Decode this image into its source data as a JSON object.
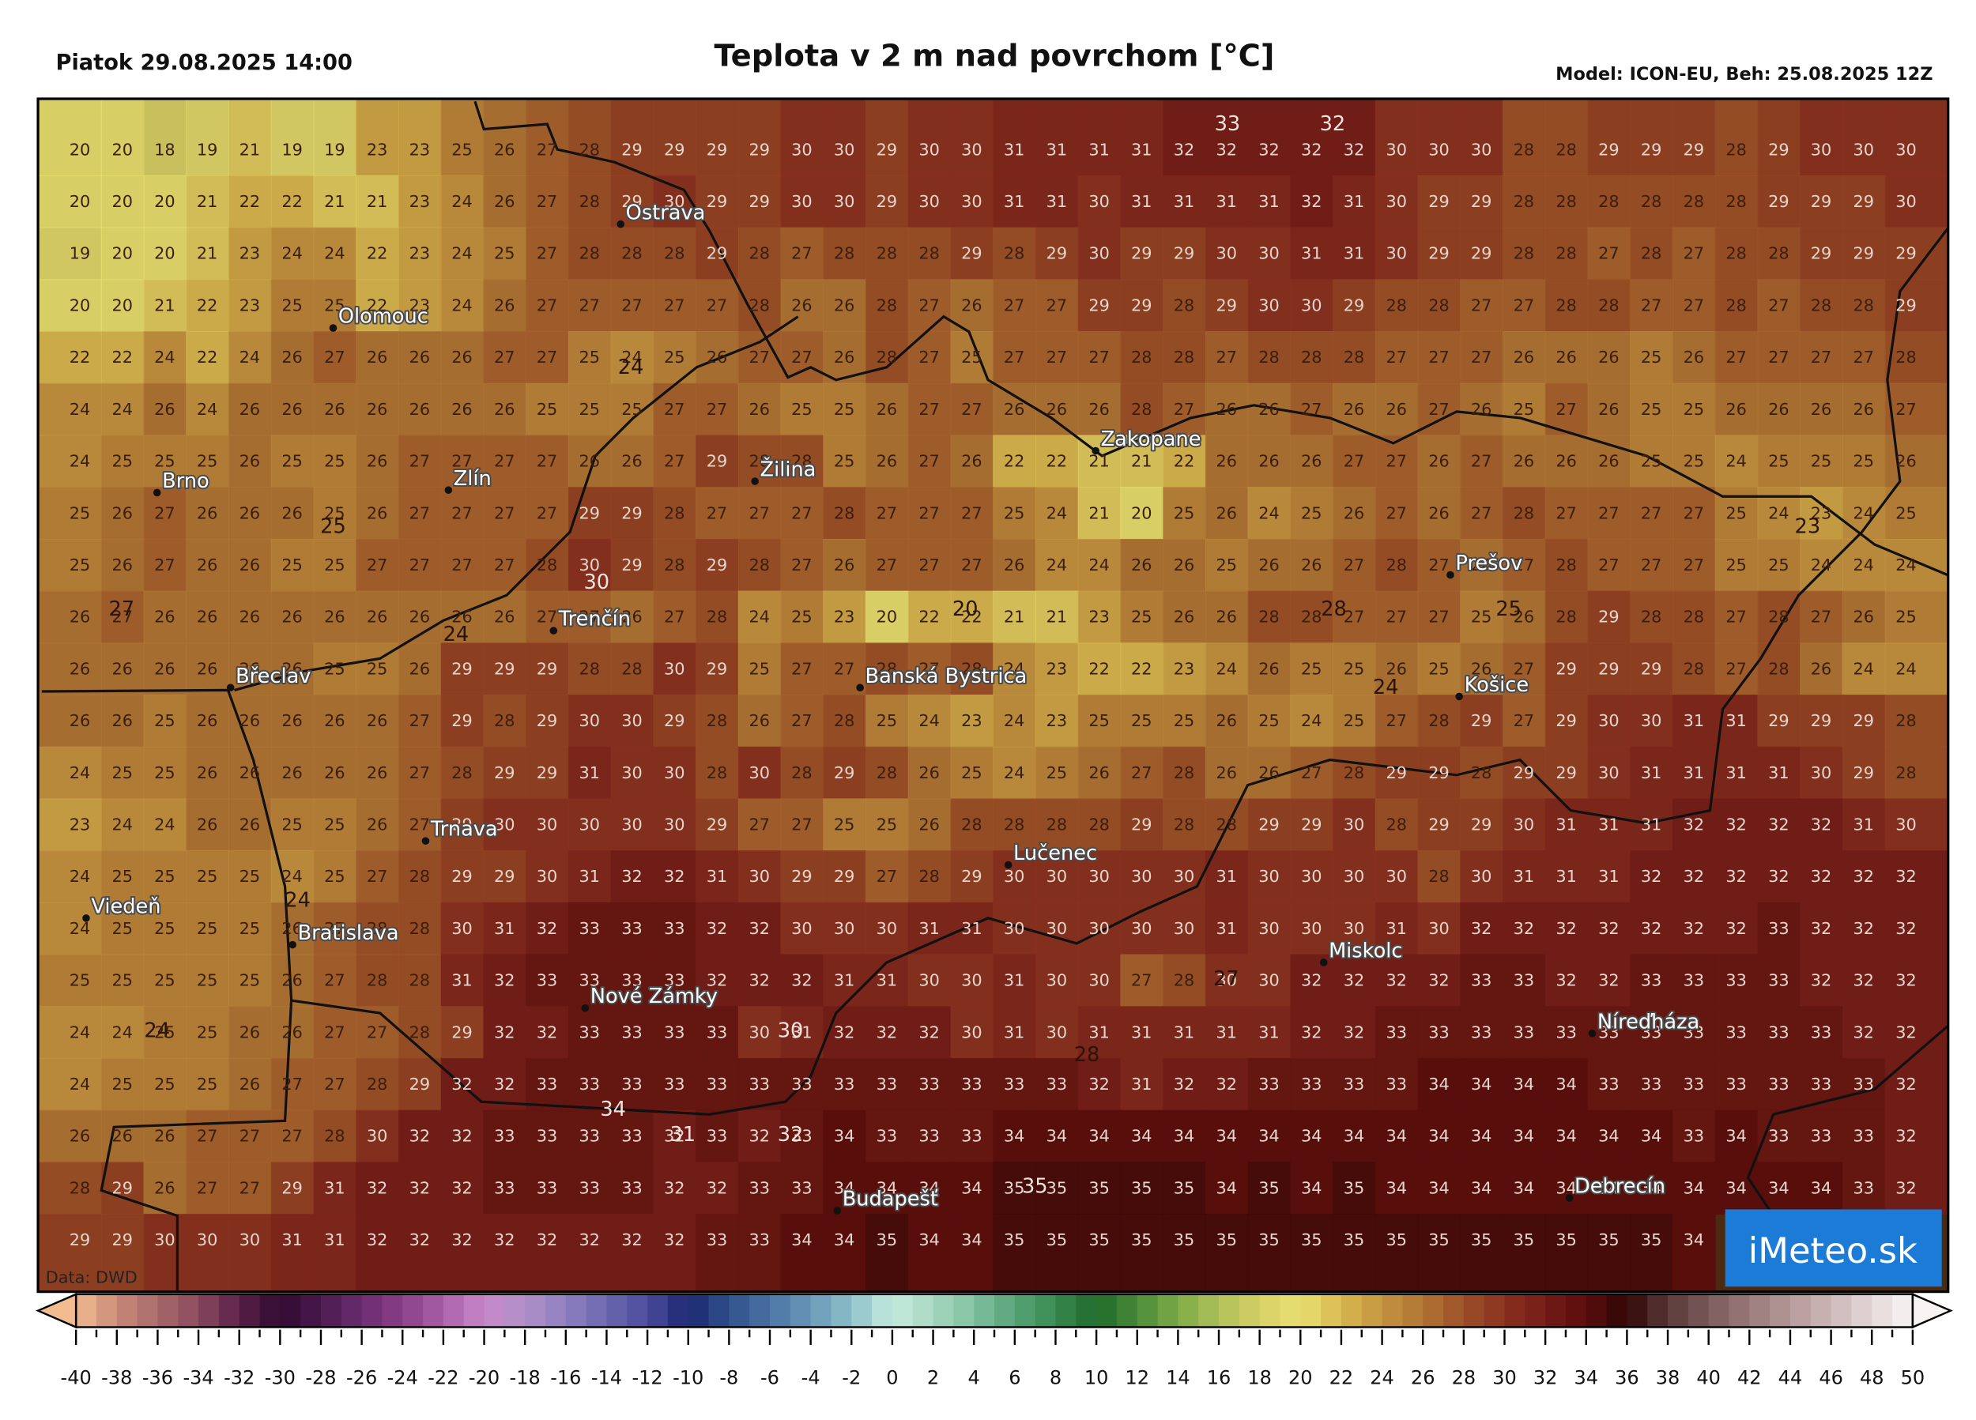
{
  "header": {
    "date": "Piatok 29.08.2025 14:00",
    "title": "Teplota v 2 m nad povrchom [°C]",
    "model": "Model: ICON-EU, Beh: 25.08.2025 12Z"
  },
  "map": {
    "grid": [
      [
        20,
        20,
        18,
        19,
        21,
        19,
        19,
        23,
        23,
        25,
        26,
        27,
        28,
        29,
        29,
        29,
        29,
        30,
        30,
        29,
        30,
        30,
        31,
        31,
        31,
        31,
        32,
        32,
        32,
        32,
        32,
        30,
        30,
        30,
        28,
        28,
        29,
        29,
        29,
        28,
        29,
        30,
        30,
        30
      ],
      [
        20,
        20,
        20,
        21,
        22,
        22,
        21,
        21,
        23,
        24,
        26,
        27,
        28,
        29,
        30,
        29,
        29,
        30,
        30,
        29,
        30,
        30,
        31,
        31,
        30,
        31,
        31,
        31,
        31,
        32,
        31,
        30,
        29,
        29,
        28,
        28,
        28,
        28,
        28,
        28,
        29,
        29,
        29,
        30
      ],
      [
        19,
        20,
        20,
        21,
        23,
        24,
        24,
        22,
        23,
        24,
        25,
        27,
        28,
        28,
        28,
        29,
        28,
        27,
        28,
        28,
        28,
        29,
        28,
        29,
        30,
        29,
        29,
        30,
        30,
        31,
        31,
        30,
        29,
        29,
        28,
        28,
        27,
        28,
        27,
        28,
        28,
        29,
        29,
        29
      ],
      [
        20,
        20,
        21,
        22,
        23,
        25,
        25,
        22,
        23,
        24,
        26,
        27,
        27,
        27,
        27,
        27,
        28,
        26,
        26,
        28,
        27,
        26,
        27,
        27,
        29,
        29,
        28,
        29,
        30,
        30,
        29,
        28,
        28,
        27,
        27,
        28,
        28,
        27,
        27,
        28,
        27,
        28,
        28,
        29
      ],
      [
        22,
        22,
        24,
        22,
        24,
        26,
        27,
        26,
        26,
        26,
        27,
        27,
        25,
        24,
        25,
        26,
        27,
        27,
        26,
        28,
        27,
        25,
        27,
        27,
        27,
        28,
        28,
        27,
        28,
        28,
        28,
        27,
        27,
        27,
        26,
        26,
        26,
        25,
        26,
        27,
        27,
        27,
        27,
        28
      ],
      [
        24,
        24,
        26,
        24,
        26,
        26,
        26,
        26,
        26,
        26,
        26,
        25,
        25,
        25,
        27,
        27,
        26,
        25,
        25,
        26,
        27,
        27,
        26,
        26,
        26,
        28,
        27,
        26,
        26,
        27,
        26,
        26,
        27,
        26,
        25,
        27,
        26,
        25,
        25,
        26,
        26,
        26,
        26,
        27
      ],
      [
        24,
        25,
        25,
        25,
        26,
        25,
        25,
        26,
        27,
        27,
        27,
        27,
        26,
        26,
        27,
        29,
        28,
        28,
        25,
        26,
        27,
        26,
        22,
        22,
        21,
        21,
        22,
        26,
        26,
        26,
        27,
        27,
        26,
        27,
        26,
        26,
        26,
        25,
        25,
        24,
        25,
        25,
        25,
        26
      ],
      [
        25,
        26,
        27,
        26,
        26,
        26,
        25,
        26,
        27,
        27,
        27,
        27,
        29,
        29,
        28,
        27,
        27,
        27,
        28,
        27,
        27,
        27,
        25,
        24,
        21,
        20,
        25,
        26,
        24,
        25,
        26,
        27,
        26,
        27,
        28,
        27,
        27,
        27,
        27,
        25,
        24,
        23,
        24,
        25
      ],
      [
        25,
        26,
        27,
        26,
        26,
        25,
        25,
        27,
        27,
        27,
        27,
        28,
        30,
        29,
        28,
        29,
        28,
        27,
        26,
        27,
        27,
        27,
        26,
        24,
        24,
        26,
        26,
        25,
        26,
        26,
        27,
        28,
        27,
        26,
        27,
        28,
        27,
        27,
        27,
        25,
        25,
        24,
        24,
        24
      ],
      [
        26,
        27,
        26,
        26,
        26,
        26,
        26,
        26,
        26,
        26,
        26,
        27,
        27,
        26,
        27,
        28,
        24,
        25,
        23,
        20,
        22,
        22,
        21,
        21,
        23,
        25,
        26,
        26,
        28,
        28,
        27,
        27,
        27,
        25,
        26,
        28,
        29,
        28,
        28,
        27,
        28,
        27,
        26,
        25
      ],
      [
        26,
        26,
        26,
        26,
        26,
        26,
        25,
        25,
        26,
        29,
        29,
        29,
        28,
        28,
        30,
        29,
        25,
        27,
        27,
        28,
        27,
        28,
        24,
        23,
        22,
        22,
        23,
        24,
        26,
        25,
        25,
        26,
        25,
        26,
        27,
        29,
        29,
        29,
        28,
        27,
        28,
        26,
        24,
        24
      ],
      [
        26,
        26,
        25,
        26,
        26,
        26,
        26,
        26,
        27,
        29,
        28,
        29,
        30,
        30,
        29,
        28,
        26,
        27,
        28,
        25,
        24,
        23,
        24,
        23,
        25,
        25,
        25,
        26,
        25,
        24,
        25,
        27,
        28,
        29,
        27,
        29,
        30,
        30,
        31,
        31,
        29,
        29,
        29,
        28
      ],
      [
        24,
        25,
        25,
        26,
        26,
        26,
        26,
        26,
        27,
        28,
        29,
        29,
        31,
        30,
        30,
        28,
        30,
        28,
        29,
        28,
        26,
        25,
        24,
        25,
        26,
        27,
        28,
        26,
        26,
        27,
        28,
        29,
        29,
        28,
        29,
        29,
        30,
        31,
        31,
        31,
        31,
        30,
        29,
        28
      ],
      [
        23,
        24,
        24,
        26,
        26,
        25,
        25,
        26,
        27,
        29,
        30,
        30,
        30,
        30,
        30,
        29,
        27,
        27,
        25,
        25,
        26,
        28,
        28,
        28,
        28,
        29,
        28,
        28,
        29,
        29,
        30,
        28,
        29,
        29,
        30,
        31,
        31,
        31,
        32,
        32,
        32,
        32,
        31,
        30
      ],
      [
        24,
        25,
        25,
        25,
        25,
        24,
        25,
        27,
        28,
        29,
        29,
        30,
        31,
        32,
        32,
        31,
        30,
        29,
        29,
        27,
        28,
        29,
        30,
        30,
        30,
        30,
        30,
        31,
        30,
        30,
        30,
        30,
        28,
        30,
        31,
        31,
        31,
        32,
        32,
        32,
        32,
        32,
        32,
        32
      ],
      [
        24,
        25,
        25,
        25,
        25,
        26,
        27,
        28,
        28,
        30,
        31,
        32,
        33,
        33,
        33,
        32,
        32,
        30,
        30,
        30,
        31,
        31,
        30,
        30,
        30,
        30,
        30,
        31,
        30,
        30,
        30,
        31,
        30,
        32,
        32,
        32,
        32,
        32,
        32,
        32,
        33,
        32,
        32,
        32
      ],
      [
        25,
        25,
        25,
        25,
        25,
        26,
        27,
        28,
        28,
        31,
        32,
        33,
        33,
        33,
        33,
        32,
        32,
        32,
        31,
        31,
        30,
        30,
        31,
        30,
        30,
        27,
        28,
        30,
        30,
        32,
        32,
        32,
        32,
        33,
        33,
        32,
        32,
        33,
        33,
        33,
        33,
        32,
        32,
        32
      ],
      [
        24,
        24,
        25,
        25,
        26,
        26,
        27,
        27,
        28,
        29,
        32,
        32,
        33,
        33,
        33,
        33,
        30,
        31,
        32,
        32,
        32,
        30,
        31,
        30,
        31,
        31,
        31,
        31,
        31,
        32,
        32,
        33,
        33,
        33,
        33,
        33,
        33,
        33,
        33,
        33,
        33,
        33,
        32,
        32
      ],
      [
        24,
        25,
        25,
        25,
        26,
        27,
        27,
        28,
        29,
        32,
        32,
        33,
        33,
        33,
        33,
        33,
        33,
        33,
        33,
        33,
        33,
        33,
        33,
        33,
        32,
        31,
        32,
        32,
        33,
        33,
        33,
        33,
        34,
        34,
        34,
        34,
        33,
        33,
        33,
        33,
        33,
        33,
        33,
        32
      ],
      [
        26,
        26,
        26,
        27,
        27,
        27,
        28,
        30,
        32,
        32,
        33,
        33,
        33,
        33,
        32,
        33,
        32,
        33,
        34,
        33,
        33,
        33,
        34,
        34,
        34,
        34,
        34,
        34,
        34,
        34,
        34,
        34,
        34,
        34,
        34,
        34,
        34,
        34,
        33,
        34,
        33,
        33,
        33,
        32
      ],
      [
        28,
        29,
        26,
        27,
        27,
        29,
        31,
        32,
        32,
        32,
        33,
        33,
        33,
        33,
        32,
        32,
        33,
        33,
        34,
        34,
        34,
        34,
        35,
        35,
        35,
        35,
        35,
        34,
        35,
        34,
        35,
        34,
        34,
        34,
        34,
        34,
        34,
        34,
        34,
        34,
        34,
        34,
        33,
        32
      ],
      [
        29,
        29,
        30,
        30,
        30,
        31,
        31,
        32,
        32,
        32,
        32,
        32,
        32,
        32,
        32,
        33,
        33,
        34,
        34,
        35,
        34,
        34,
        35,
        35,
        35,
        35,
        35,
        35,
        35,
        35,
        35,
        35,
        35,
        35,
        35,
        35,
        35,
        35,
        34,
        null,
        null,
        null,
        null,
        null
      ]
    ],
    "contour_labels": [
      33,
      32,
      24,
      25,
      23,
      30,
      27,
      20,
      28,
      25,
      24,
      24,
      24,
      27,
      24,
      30,
      28,
      34,
      31,
      32,
      35
    ],
    "cities": [
      "Ostrava",
      "Olomouc",
      "Brno",
      "Zlín",
      "Žilina",
      "Zakopane",
      "Trenčín",
      "Prešov",
      "Břeclav",
      "Banská Bystrica",
      "Košice",
      "Trnava",
      "Lučenec",
      "Viedeň",
      "Bratislava",
      "Miskolc",
      "Nové Zámky",
      "Níreďháza",
      "Budapešť",
      "Debrecín"
    ],
    "source": "Data: DWD",
    "logo": "iMeteo.sk"
  },
  "colorbar": {
    "ticks": [
      -40,
      -38,
      -36,
      -34,
      -32,
      -30,
      -28,
      -26,
      -24,
      -22,
      -20,
      -18,
      -16,
      -14,
      -12,
      -10,
      -8,
      -6,
      -4,
      -2,
      0,
      2,
      4,
      6,
      8,
      10,
      12,
      14,
      16,
      18,
      20,
      22,
      24,
      26,
      28,
      30,
      32,
      34,
      36,
      38,
      40,
      42,
      44,
      46,
      48,
      50
    ],
    "colors": [
      "#f2bc90",
      "#c98a78",
      "#a86a6a",
      "#8a4a5e",
      "#5a2048",
      "#300a30",
      "#4a1a4e",
      "#6a2c70",
      "#8a4088",
      "#aa60a8",
      "#c888c8",
      "#b090c8",
      "#9080c0",
      "#6c68b0",
      "#4a4c9c",
      "#1c2670",
      "#30508c",
      "#4a72a4",
      "#6a98b8",
      "#8cc0c8",
      "#c6ece0",
      "#a8d8c0",
      "#80c0a0",
      "#58a478",
      "#388a50",
      "#1e6a2a",
      "#4a8a38",
      "#7eaa48",
      "#aec058",
      "#d6d066",
      "#e8e070",
      "#d8b850",
      "#c49440",
      "#b07434",
      "#9c5028",
      "#8a3020",
      "#741c18",
      "#5a0c0c",
      "#300606",
      "#5a3838",
      "#7a5a5a",
      "#9a7a7a",
      "#b49898",
      "#ccb8b8",
      "#e4d8d8",
      "#f8f4f4"
    ]
  }
}
